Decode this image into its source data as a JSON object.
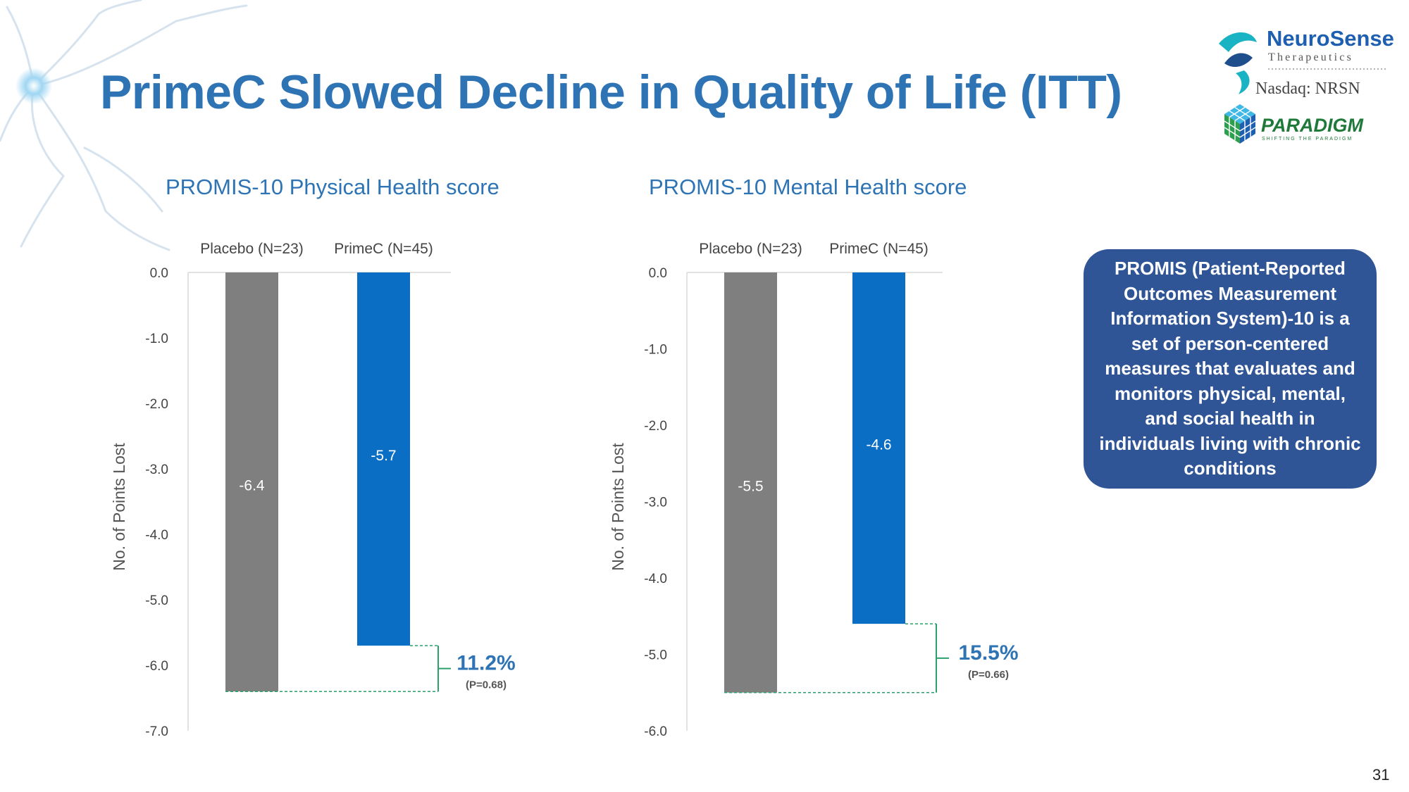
{
  "slide": {
    "title": "PrimeC Slowed Decline in Quality of Life (ITT)",
    "page_number": "31",
    "info_box": "PROMIS (Patient-Reported Outcomes Measurement Information System)-10 is a set of person-centered measures that evaluates and monitors physical, mental, and social health in individuals living with chronic conditions"
  },
  "logos": {
    "neurosense_name": "NeuroSense",
    "neurosense_sub": "Therapeutics",
    "nasdaq": "Nasdaq: NRSN",
    "paradigm_name": "PARADIGM",
    "paradigm_sub": "SHIFTING THE PARADIGM"
  },
  "colors": {
    "title_blue": "#2e74b5",
    "placebo_gray": "#7f7f7f",
    "primec_blue": "#0a6ec4",
    "bracket_green": "#2ca06c",
    "box_navy": "#2f5597"
  },
  "chart_data": [
    {
      "type": "bar",
      "title": "PROMIS-10 Physical Health score",
      "ylabel": "No. of Points Lost",
      "categories": [
        "Placebo (N=23)",
        "PrimeC (N=45)"
      ],
      "values": [
        -6.4,
        -5.7
      ],
      "data_labels": [
        "-6.4",
        "-5.7"
      ],
      "ylim": [
        -7.0,
        0.0
      ],
      "y_ticks": [
        "0.0",
        "-1.0",
        "-2.0",
        "-3.0",
        "-4.0",
        "-5.0",
        "-6.0",
        "-7.0"
      ],
      "category_axis_position": "top",
      "grid": false,
      "annotation": {
        "value": "11.2%",
        "pvalue": "(P=0.68)"
      }
    },
    {
      "type": "bar",
      "title": "PROMIS-10 Mental Health score",
      "ylabel": "No. of Points Lost",
      "categories": [
        "Placebo (N=23)",
        "PrimeC (N=45)"
      ],
      "values": [
        -5.5,
        -4.6
      ],
      "data_labels": [
        "-5.5",
        "-4.6"
      ],
      "ylim": [
        -6.0,
        0.0
      ],
      "y_ticks": [
        "0.0",
        "-1.0",
        "-2.0",
        "-3.0",
        "-4.0",
        "-5.0",
        "-6.0"
      ],
      "category_axis_position": "top",
      "grid": false,
      "annotation": {
        "value": "15.5%",
        "pvalue": "(P=0.66)"
      }
    }
  ]
}
